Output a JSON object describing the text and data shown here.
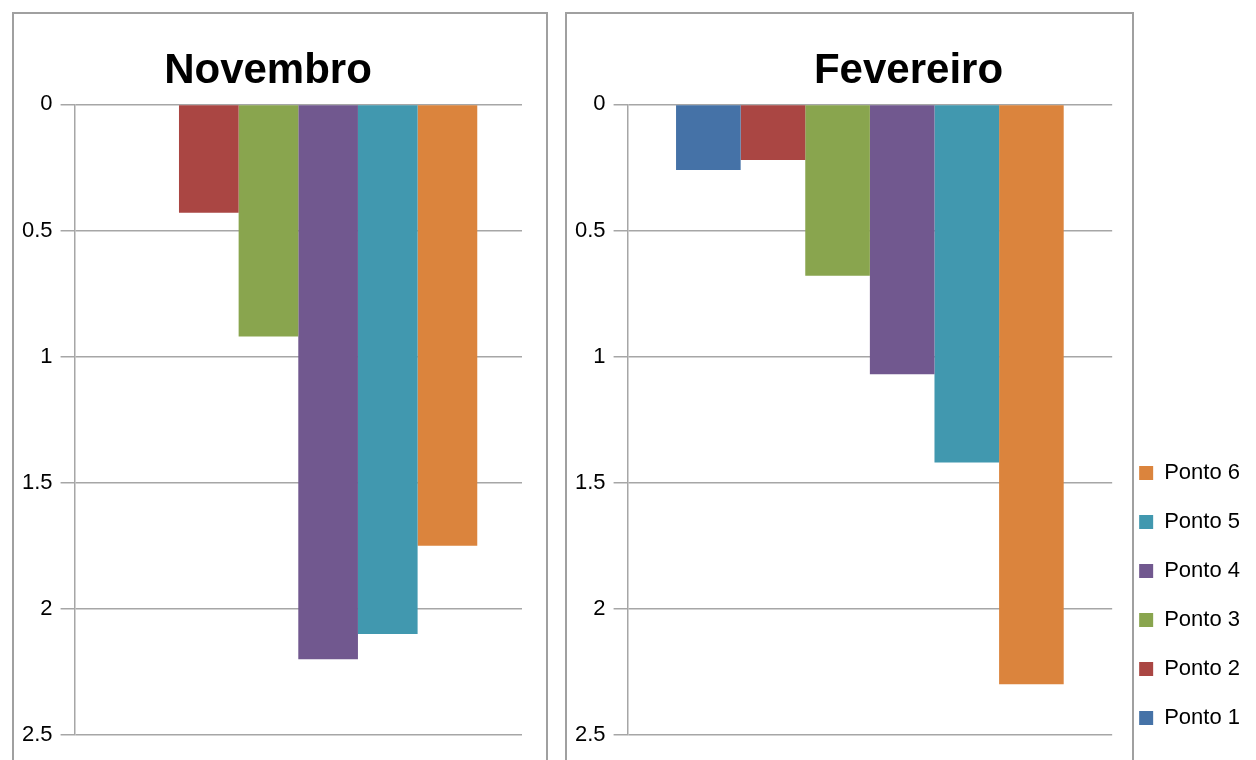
{
  "chart_data": [
    {
      "type": "bar",
      "title": "Novembro",
      "categories": [
        null
      ],
      "ylim": [
        2.5,
        0
      ],
      "yticks": [
        0,
        0.5,
        1,
        1.5,
        2,
        2.5
      ],
      "grid": "y",
      "series": [
        {
          "color": "#4572a7",
          "values": [
            0
          ]
        },
        {
          "color": "#aa4643",
          "values": [
            0.43
          ]
        },
        {
          "color": "#89a54e",
          "values": [
            0.92
          ]
        },
        {
          "color": "#71588f",
          "values": [
            2.2
          ]
        },
        {
          "color": "#4198af",
          "values": [
            2.1
          ]
        },
        {
          "color": "#db843d",
          "values": [
            1.75
          ]
        }
      ]
    },
    {
      "type": "bar",
      "title": "Fevereiro",
      "categories": [
        null
      ],
      "ylim": [
        2.5,
        0
      ],
      "yticks": [
        0,
        0.5,
        1,
        1.5,
        2,
        2.5
      ],
      "grid": "y",
      "legend": "bottom right",
      "series": [
        {
          "name": "Ponto 1",
          "color": "#4572a7",
          "values": [
            0.26
          ]
        },
        {
          "name": "Ponto 2",
          "color": "#aa4643",
          "values": [
            0.22
          ]
        },
        {
          "name": "Ponto 3",
          "color": "#89a54e",
          "values": [
            0.68
          ]
        },
        {
          "name": "Ponto 4",
          "color": "#71588f",
          "values": [
            1.07
          ]
        },
        {
          "name": "Ponto 5",
          "color": "#4198af",
          "values": [
            1.42
          ]
        },
        {
          "name": "Ponto 6",
          "color": "#db843d",
          "values": [
            2.3
          ]
        }
      ]
    }
  ]
}
